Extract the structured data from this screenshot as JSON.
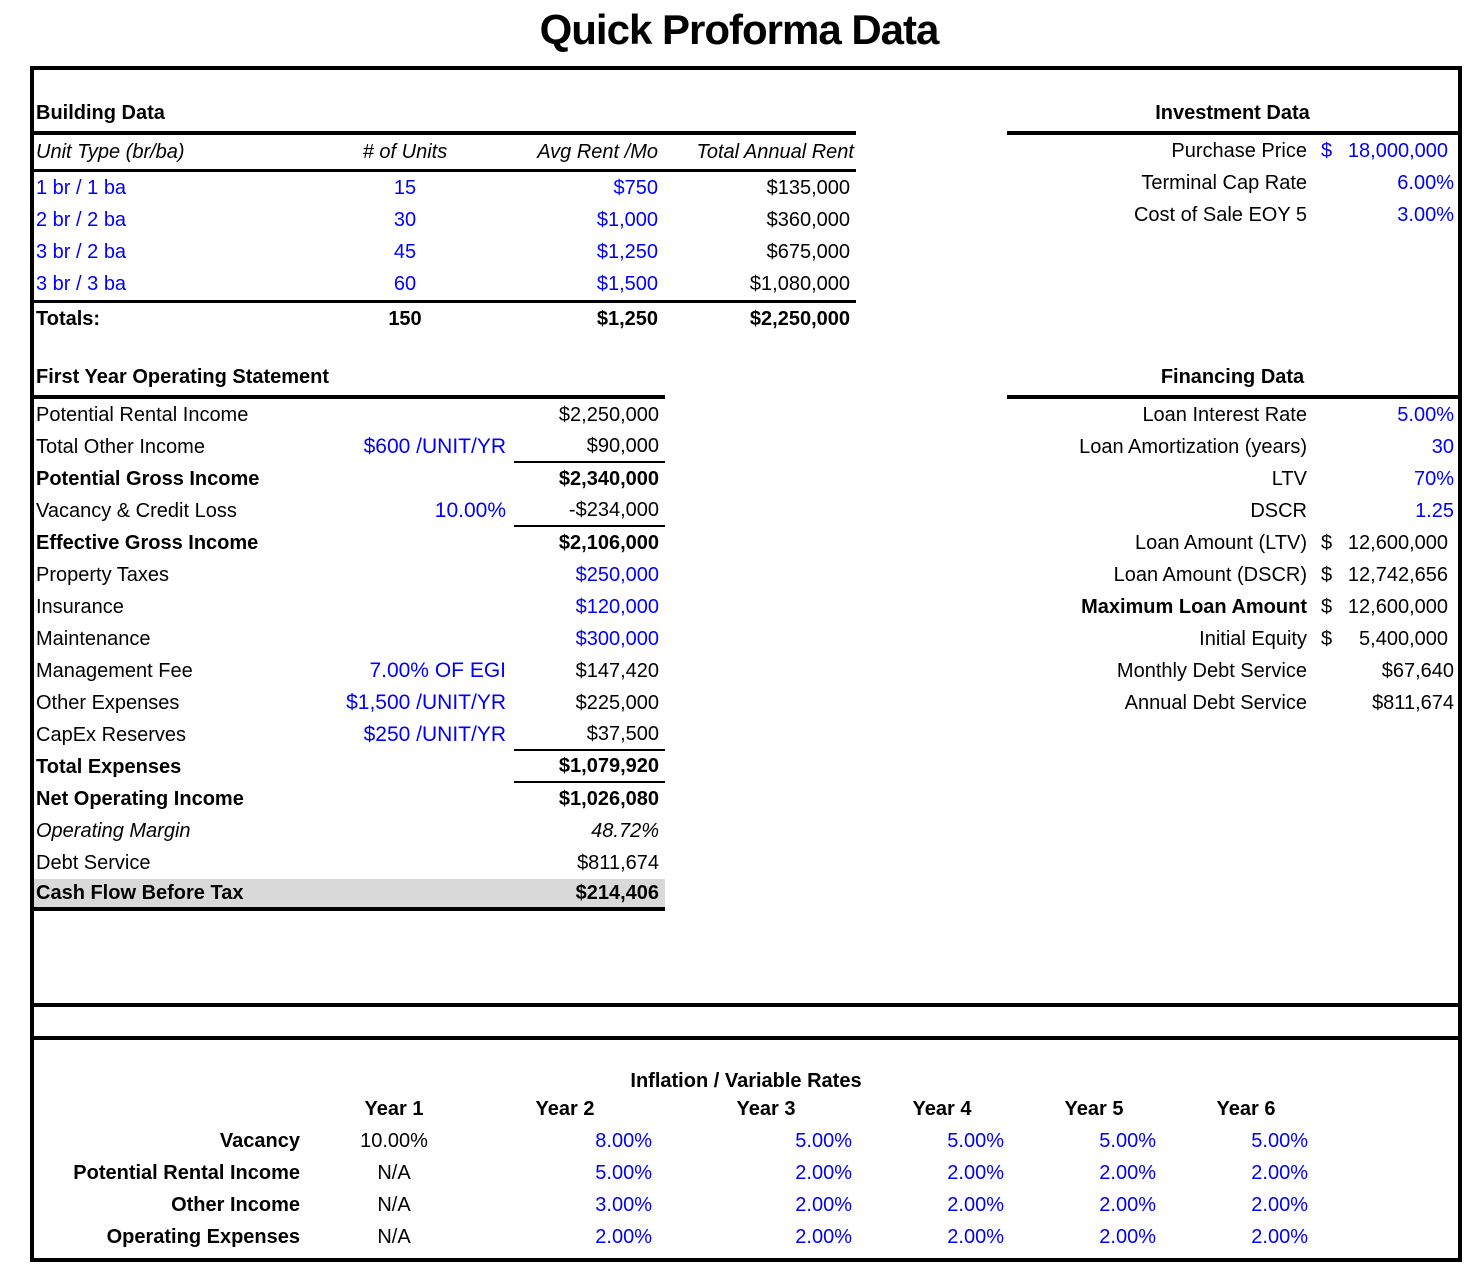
{
  "title": "Quick Proforma Data",
  "colors": {
    "input_blue": "#0000FF",
    "highlight_gray": "#D9D9D9",
    "line_black": "#000000"
  },
  "building": {
    "heading": "Building Data",
    "columns": {
      "unit_type": "Unit Type (br/ba)",
      "units": "# of Units",
      "rent": "Avg Rent /Mo",
      "annual": "Total Annual Rent"
    },
    "rows": [
      {
        "unit_type": "1 br / 1 ba",
        "units": "15",
        "rent": "$750",
        "annual": "$135,000"
      },
      {
        "unit_type": "2 br / 2 ba",
        "units": "30",
        "rent": "$1,000",
        "annual": "$360,000"
      },
      {
        "unit_type": "3 br / 2 ba",
        "units": "45",
        "rent": "$1,250",
        "annual": "$675,000"
      },
      {
        "unit_type": "3 br / 3 ba",
        "units": "60",
        "rent": "$1,500",
        "annual": "$1,080,000"
      }
    ],
    "totals": {
      "label": "Totals:",
      "units": "150",
      "rent": "$1,250",
      "annual": "$2,250,000"
    }
  },
  "investment": {
    "heading": "Investment Data",
    "rows": [
      {
        "label": "Purchase Price",
        "currency": "$",
        "value": "18,000,000"
      },
      {
        "label": "Terminal Cap Rate",
        "value": "6.00%"
      },
      {
        "label": "Cost of Sale EOY 5",
        "value": "3.00%"
      }
    ]
  },
  "operating": {
    "heading": "First Year Operating Statement",
    "rows": [
      {
        "label": "Potential Rental Income",
        "note": "",
        "value": "$2,250,000"
      },
      {
        "label": "Total Other Income",
        "note": "$600 /UNIT/YR",
        "value": "$90,000"
      },
      {
        "label": "Potential Gross Income",
        "note": "",
        "value": "$2,340,000"
      },
      {
        "label": "Vacancy & Credit Loss",
        "note": "10.00%",
        "value": "-$234,000"
      },
      {
        "label": "Effective Gross Income",
        "note": "",
        "value": "$2,106,000"
      },
      {
        "label": "Property Taxes",
        "note": "",
        "value": "$250,000"
      },
      {
        "label": "Insurance",
        "note": "",
        "value": "$120,000"
      },
      {
        "label": "Maintenance",
        "note": "",
        "value": "$300,000"
      },
      {
        "label": "Management Fee",
        "note": "7.00% OF EGI",
        "value": "$147,420"
      },
      {
        "label": "Other Expenses",
        "note": "$1,500 /UNIT/YR",
        "value": "$225,000"
      },
      {
        "label": "CapEx Reserves",
        "note": "$250 /UNIT/YR",
        "value": "$37,500"
      },
      {
        "label": "Total Expenses",
        "note": "",
        "value": "$1,079,920"
      },
      {
        "label": "Net Operating Income",
        "note": "",
        "value": "$1,026,080"
      },
      {
        "label": "Operating Margin",
        "note": "",
        "value": "48.72%"
      },
      {
        "label": "Debt Service",
        "note": "",
        "value": "$811,674"
      },
      {
        "label": "Cash Flow Before Tax",
        "note": "",
        "value": "$214,406"
      }
    ]
  },
  "financing": {
    "heading": "Financing Data",
    "rows": [
      {
        "label": "Loan Interest Rate",
        "value": "5.00%"
      },
      {
        "label": "Loan Amortization (years)",
        "value": "30"
      },
      {
        "label": "LTV",
        "value": "70%"
      },
      {
        "label": "DSCR",
        "value": "1.25"
      },
      {
        "label": "Loan Amount (LTV)",
        "currency": "$",
        "value": "12,600,000"
      },
      {
        "label": "Loan Amount (DSCR)",
        "currency": "$",
        "value": "12,742,656"
      },
      {
        "label": "Maximum Loan Amount",
        "currency": "$",
        "value": "12,600,000"
      },
      {
        "label": "Initial Equity",
        "currency": "$",
        "value": "5,400,000"
      },
      {
        "label": "Monthly Debt Service",
        "value": "$67,640"
      },
      {
        "label": "Annual Debt Service",
        "value": "$811,674"
      }
    ]
  },
  "inflation": {
    "heading": "Inflation / Variable Rates",
    "year_headers": [
      "Year 1",
      "Year 2",
      "Year 3",
      "Year 4",
      "Year 5",
      "Year 6"
    ],
    "rows": [
      {
        "label": "Vacancy",
        "values": [
          "10.00%",
          "8.00%",
          "5.00%",
          "5.00%",
          "5.00%",
          "5.00%"
        ]
      },
      {
        "label": "Potential Rental Income",
        "values": [
          "N/A",
          "5.00%",
          "2.00%",
          "2.00%",
          "2.00%",
          "2.00%"
        ]
      },
      {
        "label": "Other Income",
        "values": [
          "N/A",
          "3.00%",
          "2.00%",
          "2.00%",
          "2.00%",
          "2.00%"
        ]
      },
      {
        "label": "Operating Expenses",
        "values": [
          "N/A",
          "2.00%",
          "2.00%",
          "2.00%",
          "2.00%",
          "2.00%"
        ]
      }
    ]
  }
}
